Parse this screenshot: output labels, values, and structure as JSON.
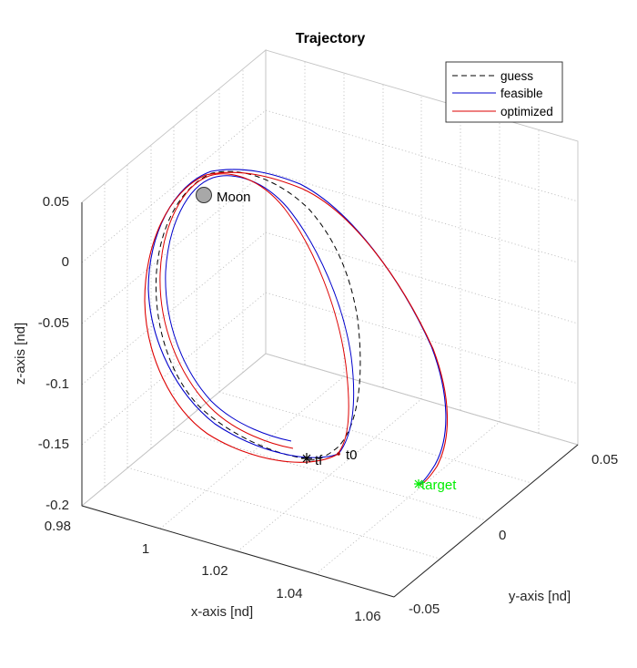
{
  "chart_data": {
    "type": "line3d",
    "title": "Trajectory",
    "xlabel": "x-axis [nd]",
    "ylabel": "y-axis [nd]",
    "zlabel": "z-axis [nd]",
    "xlim": [
      0.98,
      1.06
    ],
    "ylim": [
      -0.05,
      0.05
    ],
    "zlim": [
      -0.2,
      0.05
    ],
    "x_ticks": [
      "0.98",
      "1",
      "1.02",
      "1.04",
      "1.06"
    ],
    "y_ticks": [
      "-0.05",
      "0",
      "0.05"
    ],
    "z_ticks": [
      "-0.2",
      "-0.15",
      "-0.1",
      "-0.05",
      "0",
      "0.05"
    ],
    "grid": true,
    "legend_position": "top-right",
    "series": [
      {
        "name": "guess",
        "color": "#000000",
        "style": "dashed"
      },
      {
        "name": "feasible",
        "color": "#0000ff",
        "style": "solid"
      },
      {
        "name": "optimized",
        "color": "#ff0000",
        "style": "solid"
      }
    ],
    "annotations": {
      "moon": "Moon",
      "start": "t0",
      "end": "tf",
      "target": "target",
      "target_color": "#00ee00"
    }
  }
}
